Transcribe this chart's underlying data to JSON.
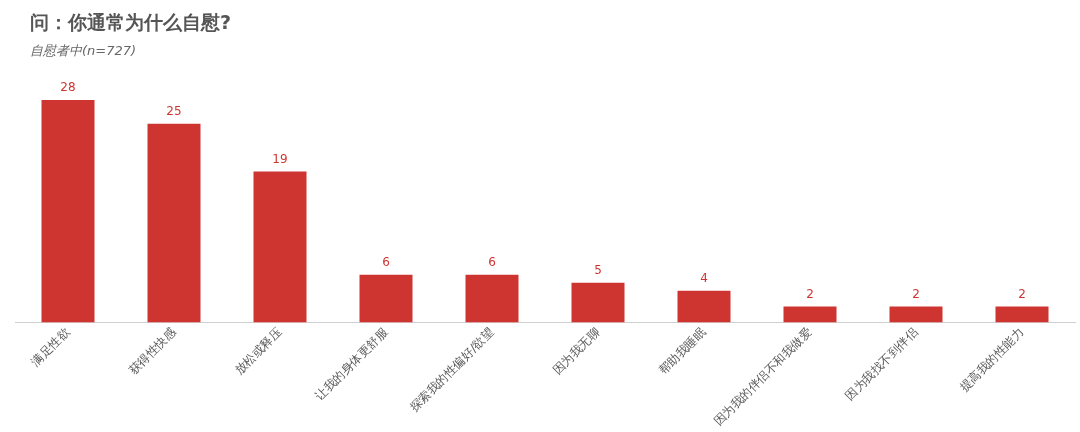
{
  "chart_data": {
    "type": "bar",
    "title": "问：你通常为什么自慰?",
    "subtitle": "自慰者中(n=727)",
    "categories": [
      "满足性欲",
      "获得性快感",
      "放松或释压",
      "让我的身体更舒服",
      "探索我的性偏好/欲望",
      "因为我无聊",
      "帮助我睡眠",
      "因为我的伴侣不和我做爱",
      "因为我找不到伴侣",
      "提高我的性能力"
    ],
    "values": [
      28,
      25,
      19,
      6,
      6,
      5,
      4,
      2,
      2,
      2
    ],
    "color": "#cf3530",
    "data_labels": true,
    "grid": false,
    "legend": false
  }
}
